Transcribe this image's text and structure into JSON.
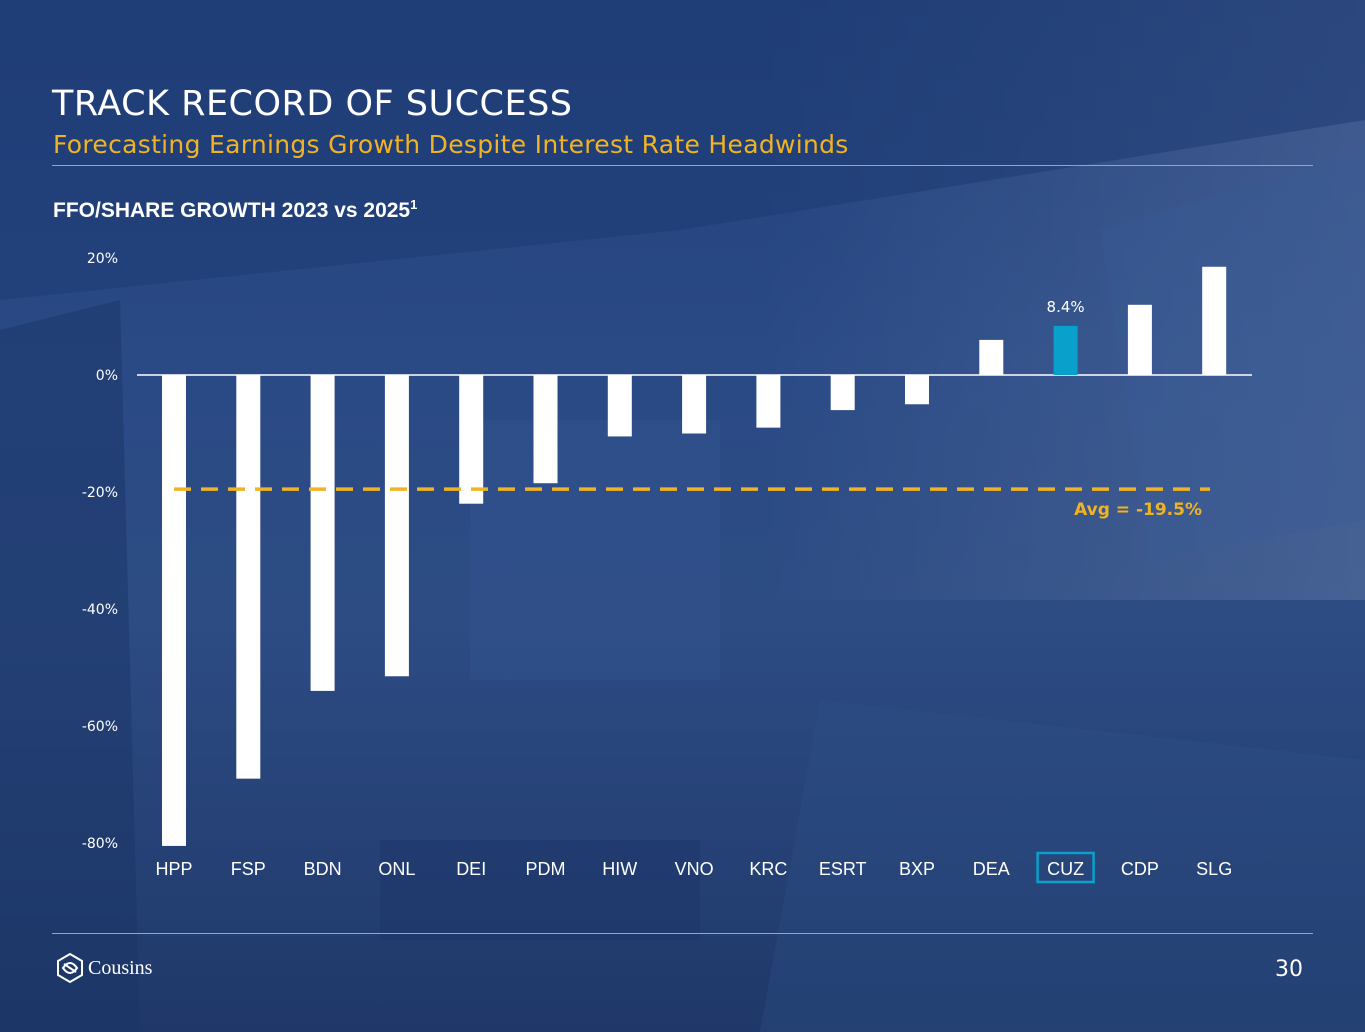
{
  "slide": {
    "title": "TRACK RECORD OF SUCCESS",
    "subtitle": "Forecasting Earnings Growth Despite Interest Rate Headwinds",
    "page_number": "30",
    "logo_text": "Cousins"
  },
  "colors": {
    "background": "#24437f",
    "bar": "#ffffff",
    "highlight": "#0aa0cc",
    "average_line": "#f0b323",
    "title": "#ffffff",
    "subtitle": "#f0b323"
  },
  "chart_data": {
    "type": "bar",
    "title": "FFO/SHARE GROWTH 2023 vs 2025",
    "title_footnote": "1",
    "categories": [
      "HPP",
      "FSP",
      "BDN",
      "ONL",
      "DEI",
      "PDM",
      "HIW",
      "VNO",
      "KRC",
      "ESRT",
      "BXP",
      "DEA",
      "CUZ",
      "CDP",
      "SLG"
    ],
    "values": [
      -80.5,
      -69.0,
      -54.0,
      -51.5,
      -22.0,
      -18.5,
      -10.5,
      -10.0,
      -9.0,
      -6.0,
      -5.0,
      6.0,
      8.4,
      12.0,
      18.5
    ],
    "highlight_category": "CUZ",
    "highlight_label": "8.4%",
    "yticks": [
      "20%",
      "0%",
      "-20%",
      "-40%",
      "-60%",
      "-80%"
    ],
    "ytick_values": [
      20,
      0,
      -20,
      -40,
      -60,
      -80
    ],
    "ylim": [
      -80,
      20
    ],
    "average": -19.5,
    "average_label": "Avg = -19.5%",
    "legend": "none",
    "grid": false
  }
}
